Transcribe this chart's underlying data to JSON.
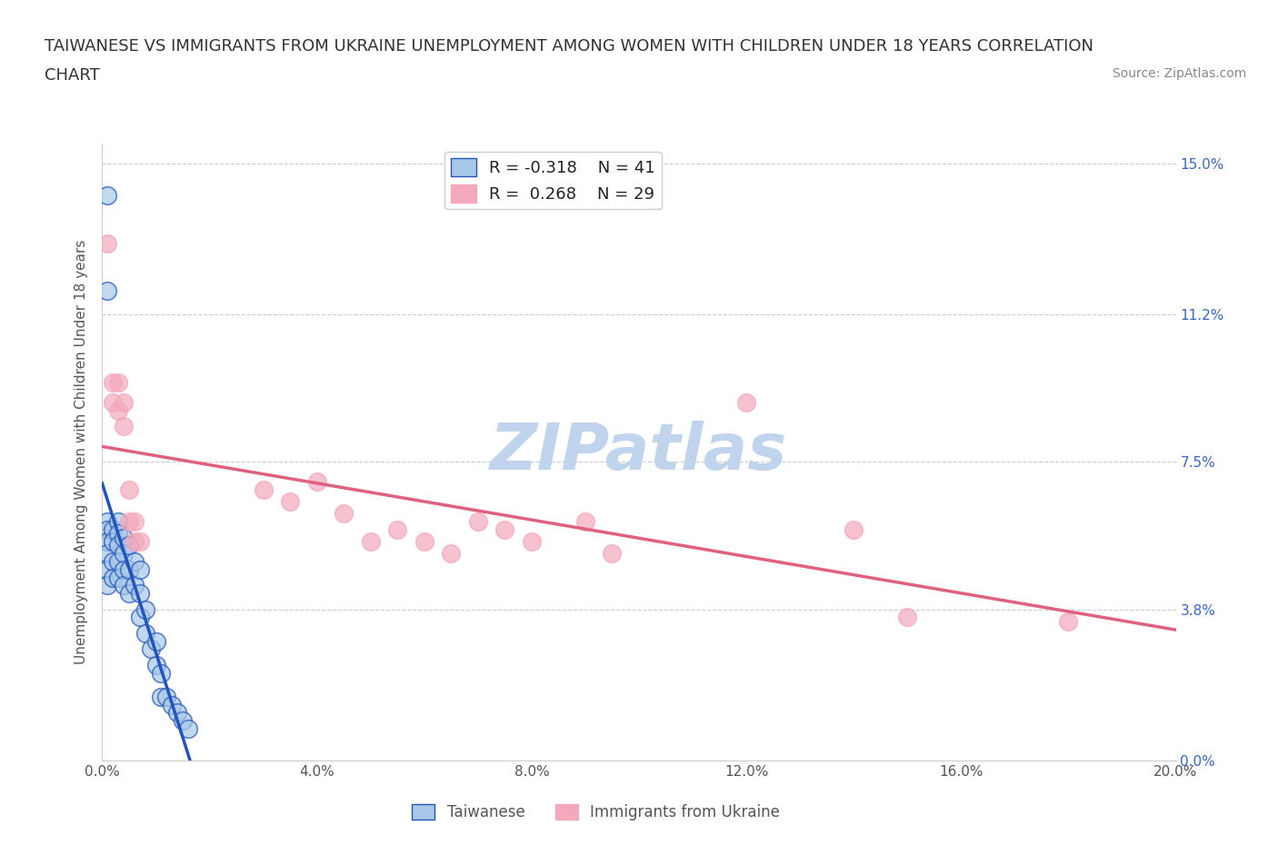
{
  "title_line1": "TAIWANESE VS IMMIGRANTS FROM UKRAINE UNEMPLOYMENT AMONG WOMEN WITH CHILDREN UNDER 18 YEARS CORRELATION",
  "title_line2": "CHART",
  "source": "Source: ZipAtlas.com",
  "ylabel": "Unemployment Among Women with Children Under 18 years",
  "xmin": 0.0,
  "xmax": 0.2,
  "ymin": 0.0,
  "ymax": 0.155,
  "yticks": [
    0.0,
    0.038,
    0.075,
    0.112,
    0.15
  ],
  "ytick_labels": [
    "0.0%",
    "3.8%",
    "7.5%",
    "11.2%",
    "15.0%"
  ],
  "xticks": [
    0.0,
    0.04,
    0.08,
    0.12,
    0.16,
    0.2
  ],
  "xtick_labels": [
    "0.0%",
    "4.0%",
    "8.0%",
    "12.0%",
    "16.0%",
    "20.0%"
  ],
  "legend_r1": "R = -0.318",
  "legend_n1": "N = 41",
  "legend_r2": "R =  0.268",
  "legend_n2": "N = 29",
  "color_taiwanese": "#a8c8e8",
  "color_ukraine": "#f4a8bc",
  "color_line_taiwanese": "#2255bb",
  "color_line_ukraine": "#e06080",
  "watermark": "ZIPatlas",
  "watermark_color": "#c0d4ee",
  "taiwanese_x": [
    0.001,
    0.001,
    0.001,
    0.001,
    0.001,
    0.001,
    0.001,
    0.001,
    0.002,
    0.002,
    0.002,
    0.002,
    0.003,
    0.003,
    0.003,
    0.003,
    0.003,
    0.004,
    0.004,
    0.004,
    0.004,
    0.005,
    0.005,
    0.005,
    0.006,
    0.006,
    0.007,
    0.007,
    0.007,
    0.008,
    0.008,
    0.009,
    0.01,
    0.01,
    0.011,
    0.011,
    0.012,
    0.013,
    0.014,
    0.015,
    0.016
  ],
  "taiwanese_y": [
    0.142,
    0.118,
    0.06,
    0.058,
    0.055,
    0.052,
    0.048,
    0.044,
    0.058,
    0.055,
    0.05,
    0.046,
    0.06,
    0.057,
    0.054,
    0.05,
    0.046,
    0.056,
    0.052,
    0.048,
    0.044,
    0.054,
    0.048,
    0.042,
    0.05,
    0.044,
    0.048,
    0.042,
    0.036,
    0.038,
    0.032,
    0.028,
    0.03,
    0.024,
    0.022,
    0.016,
    0.016,
    0.014,
    0.012,
    0.01,
    0.008
  ],
  "ukraine_x": [
    0.001,
    0.002,
    0.002,
    0.003,
    0.003,
    0.004,
    0.004,
    0.005,
    0.005,
    0.006,
    0.006,
    0.007,
    0.03,
    0.035,
    0.04,
    0.045,
    0.05,
    0.055,
    0.06,
    0.065,
    0.07,
    0.075,
    0.08,
    0.09,
    0.095,
    0.12,
    0.14,
    0.15,
    0.18
  ],
  "ukraine_y": [
    0.13,
    0.095,
    0.09,
    0.095,
    0.088,
    0.09,
    0.084,
    0.068,
    0.06,
    0.06,
    0.055,
    0.055,
    0.068,
    0.065,
    0.07,
    0.062,
    0.055,
    0.058,
    0.055,
    0.052,
    0.06,
    0.058,
    0.055,
    0.06,
    0.052,
    0.09,
    0.058,
    0.036,
    0.035
  ]
}
